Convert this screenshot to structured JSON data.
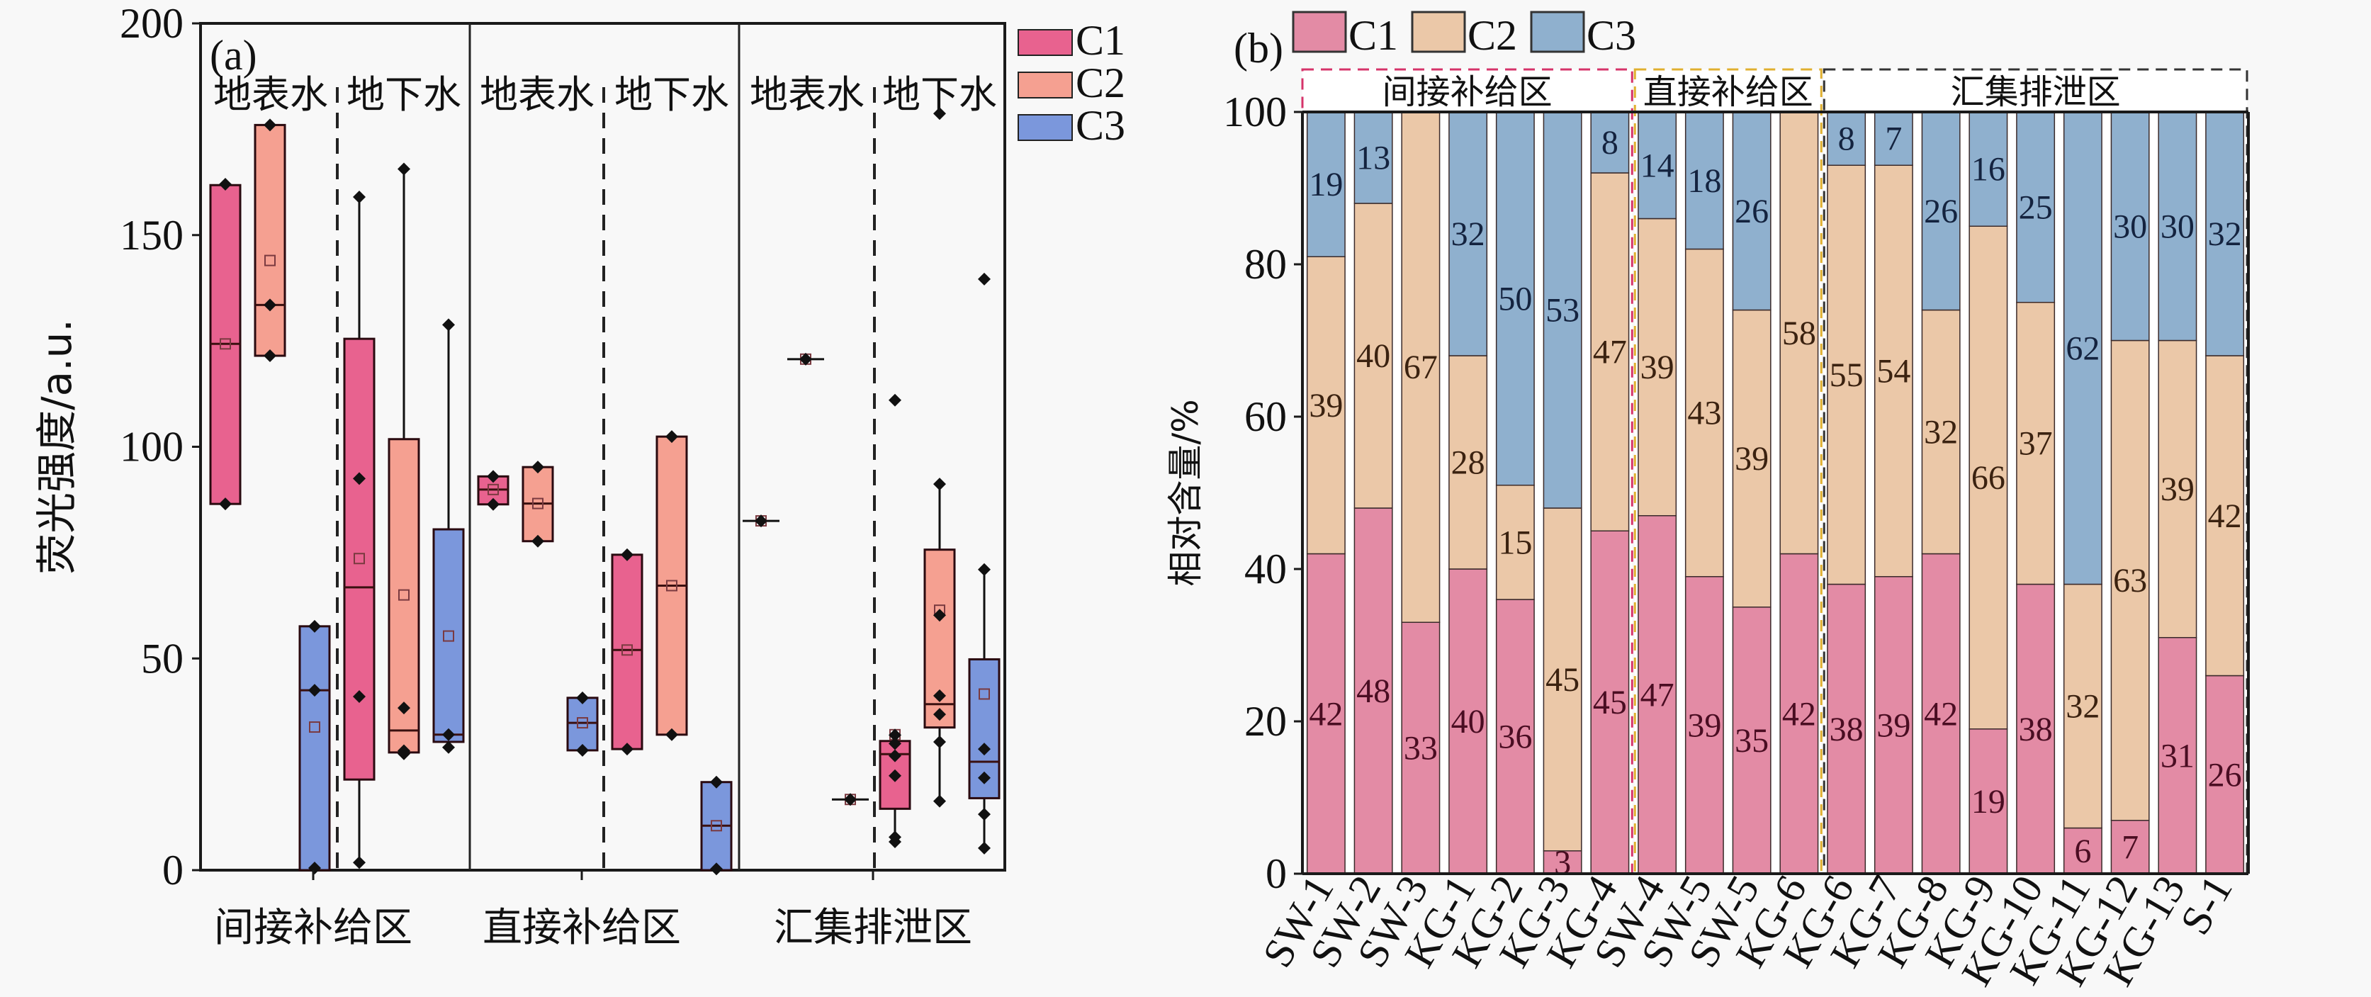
{
  "chart_data": [
    {
      "id": "a",
      "type": "box",
      "panel_label": "(a)",
      "title": "",
      "xlabel": "",
      "ylabel": "荧光强度/a.u.",
      "ylim": [
        0,
        200
      ],
      "yticks": [
        0,
        50,
        100,
        150,
        200
      ],
      "grid": false,
      "legend": {
        "placement": "right",
        "entries": [
          "C1",
          "C2",
          "C3"
        ]
      },
      "colors": {
        "C1": "#E8628F",
        "C2": "#F5A091",
        "C3": "#7B97DC"
      },
      "categories": [
        "间接补给区",
        "直接补给区",
        "汇集排泄区"
      ],
      "subgroup_labels": [
        "地表水",
        "地下水"
      ],
      "groups": [
        {
          "zone": "间接补给区",
          "water": "地表水",
          "boxes": [
            {
              "series": "C1",
              "q1": 86.5,
              "median": 124.3,
              "q3": 161.8,
              "mean": 124.3,
              "whisker_low": 86.5,
              "whisker_high": 161.8,
              "points": [
                162,
                86.5
              ]
            },
            {
              "series": "C2",
              "q1": 121.5,
              "median": 133.5,
              "q3": 176,
              "mean": 144,
              "whisker_low": 121.5,
              "whisker_high": 176,
              "points": [
                176,
                133.5,
                121.5
              ]
            },
            {
              "series": "C3",
              "q1": 0,
              "median": 42.5,
              "q3": 57.6,
              "mean": 33.8,
              "whisker_low": 0,
              "whisker_high": 57.6,
              "points": [
                57.6,
                42.5,
                0.5
              ]
            }
          ]
        },
        {
          "zone": "间接补给区",
          "water": "地下水",
          "boxes": [
            {
              "series": "C1",
              "q1": 21.4,
              "median": 66.8,
              "q3": 125.5,
              "mean": 73.6,
              "whisker_low": 1.8,
              "whisker_high": 159,
              "points": [
                159,
                92.5,
                41,
                1.8
              ]
            },
            {
              "series": "C2",
              "q1": 27.8,
              "median": 33,
              "q3": 101.8,
              "mean": 65,
              "whisker_low": 27.8,
              "whisker_high": 165.6,
              "points": [
                165.6,
                38.3,
                27.5,
                28.2
              ]
            },
            {
              "series": "C3",
              "q1": 30.3,
              "median": 32,
              "q3": 80.5,
              "mean": 55.3,
              "whisker_low": 29,
              "whisker_high": 128.8,
              "points": [
                128.8,
                32,
                29
              ]
            }
          ]
        },
        {
          "zone": "直接补给区",
          "water": "地表水",
          "boxes": [
            {
              "series": "C1",
              "q1": 86.4,
              "median": 89.9,
              "q3": 93,
              "mean": 89.9,
              "whisker_low": 86.4,
              "whisker_high": 93,
              "points": [
                93,
                86.4
              ]
            },
            {
              "series": "C2",
              "q1": 77.7,
              "median": 86.6,
              "q3": 95.2,
              "mean": 86.6,
              "whisker_low": 77.7,
              "whisker_high": 95.2,
              "points": [
                95.2,
                77.7
              ]
            },
            {
              "series": "C3",
              "q1": 28.3,
              "median": 34.8,
              "q3": 40.7,
              "mean": 34.8,
              "whisker_low": 28.3,
              "whisker_high": 40.7,
              "points": [
                40.7,
                28.3
              ]
            }
          ]
        },
        {
          "zone": "直接补给区",
          "water": "地下水",
          "boxes": [
            {
              "series": "C1",
              "q1": 28.6,
              "median": 52,
              "q3": 74.5,
              "mean": 52,
              "whisker_low": 28.6,
              "whisker_high": 74.5,
              "points": [
                74.5,
                28.6
              ]
            },
            {
              "series": "C2",
              "q1": 32,
              "median": 67.2,
              "q3": 102.4,
              "mean": 67.2,
              "whisker_low": 32,
              "whisker_high": 102.4,
              "points": [
                102.4,
                32
              ]
            },
            {
              "series": "C3",
              "q1": 0,
              "median": 10.5,
              "q3": 20.8,
              "mean": 10.5,
              "whisker_low": 0,
              "whisker_high": 20.8,
              "points": [
                20.8,
                0.3
              ]
            }
          ]
        },
        {
          "zone": "汇集排泄区",
          "water": "地表水",
          "boxes": [
            {
              "series": "C1",
              "q1": 82.5,
              "median": 82.5,
              "q3": 82.5,
              "mean": 82.5,
              "whisker_low": 82.5,
              "whisker_high": 82.5,
              "points": [
                82.5
              ]
            },
            {
              "series": "C2",
              "q1": 120.7,
              "median": 120.7,
              "q3": 120.7,
              "mean": 120.7,
              "whisker_low": 120.7,
              "whisker_high": 120.7,
              "points": [
                120.7
              ]
            },
            {
              "series": "C3",
              "q1": 16.7,
              "median": 16.7,
              "q3": 16.7,
              "mean": 16.7,
              "whisker_low": 16.7,
              "whisker_high": 16.7,
              "points": [
                16.7
              ]
            }
          ]
        },
        {
          "zone": "汇集排泄区",
          "water": "地下水",
          "boxes": [
            {
              "series": "C1",
              "q1": 14.5,
              "median": 27.4,
              "q3": 30.5,
              "mean": 32,
              "whisker_low": 6.7,
              "whisker_high": 30.5,
              "points": [
                111,
                31.9,
                29.9,
                27,
                22.3,
                7.8,
                6.7
              ]
            },
            {
              "series": "C2",
              "q1": 33.7,
              "median": 39.2,
              "q3": 75.7,
              "mean": 61.4,
              "whisker_low": 16.3,
              "whisker_high": 91.2,
              "points": [
                178.7,
                91.2,
                60.2,
                41.2,
                36.8,
                30.3,
                16.3
              ]
            },
            {
              "series": "C3",
              "q1": 17,
              "median": 25.6,
              "q3": 49.8,
              "mean": 41.6,
              "whisker_low": 5.2,
              "whisker_high": 71,
              "points": [
                139.6,
                71,
                28.6,
                21.8,
                13.2,
                5.2
              ]
            }
          ]
        }
      ]
    },
    {
      "id": "b",
      "type": "bar",
      "stacked": true,
      "panel_label": "(b)",
      "title": "",
      "xlabel": "",
      "ylabel": "相对含量/%",
      "ylim": [
        0,
        100
      ],
      "yticks": [
        0,
        20,
        40,
        60,
        80,
        100
      ],
      "grid": false,
      "legend": {
        "placement": "top-left",
        "entries": [
          "C1",
          "C2",
          "C3"
        ]
      },
      "colors": {
        "C1": "#E38BA5",
        "C2": "#EBC8A8",
        "C3": "#8FB0CE"
      },
      "categories": [
        "SW-1",
        "SW-2",
        "SW-3",
        "KG-1",
        "KG-2",
        "KG-3",
        "KG-4",
        "SW-4",
        "SW-5",
        "SW-5",
        "KG-6",
        "KG-6",
        "KG-7",
        "KG-8",
        "KG-9",
        "KG-10",
        "KG-11",
        "KG-12",
        "KG-13",
        "S-1"
      ],
      "series": [
        {
          "name": "C1",
          "values": [
            42,
            48,
            33,
            40,
            36,
            3,
            45,
            47,
            39,
            35,
            42,
            38,
            39,
            42,
            19,
            38,
            6,
            7,
            31,
            26
          ]
        },
        {
          "name": "C2",
          "values": [
            39,
            40,
            67,
            28,
            15,
            45,
            47,
            39,
            43,
            39,
            58,
            55,
            54,
            32,
            66,
            37,
            32,
            63,
            39,
            42
          ]
        },
        {
          "name": "C3",
          "values": [
            19,
            13,
            0,
            32,
            50,
            53,
            8,
            14,
            18,
            26,
            0,
            8,
            7,
            26,
            16,
            25,
            62,
            30,
            30,
            32
          ]
        }
      ],
      "zones": [
        {
          "label": "间接补给区",
          "from": 0,
          "to": 6,
          "color": "#D6336A"
        },
        {
          "label": "直接补给区",
          "from": 7,
          "to": 10,
          "color": "#E0B030"
        },
        {
          "label": "汇集排泄区",
          "from": 11,
          "to": 19,
          "color": "#333333"
        }
      ]
    }
  ]
}
